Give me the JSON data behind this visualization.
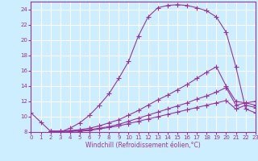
{
  "xlabel": "Windchill (Refroidissement éolien,°C)",
  "background_color": "#cceeff",
  "grid_color": "#ffffff",
  "line_color": "#993399",
  "xlim": [
    0,
    23
  ],
  "ylim": [
    8,
    25
  ],
  "xticks": [
    0,
    1,
    2,
    3,
    4,
    5,
    6,
    7,
    8,
    9,
    10,
    11,
    12,
    13,
    14,
    15,
    16,
    17,
    18,
    19,
    20,
    21,
    22,
    23
  ],
  "yticks": [
    8,
    10,
    12,
    14,
    16,
    18,
    20,
    22,
    24
  ],
  "curve1_x": [
    0,
    1,
    2,
    3,
    4,
    5,
    6,
    7,
    8,
    9,
    10,
    11,
    12,
    13,
    14,
    15,
    16,
    17,
    18,
    19,
    20,
    21,
    22,
    23
  ],
  "curve1_y": [
    10.5,
    9.3,
    8.1,
    8.0,
    8.5,
    9.2,
    10.2,
    11.5,
    13.0,
    15.0,
    17.2,
    20.5,
    23.0,
    24.2,
    24.5,
    24.6,
    24.5,
    24.2,
    23.8,
    23.0,
    21.0,
    16.5,
    11.0,
    10.5
  ],
  "curve2_x": [
    2,
    3,
    4,
    5,
    6,
    7,
    8,
    9,
    10,
    11,
    12,
    13,
    14,
    15,
    16,
    17,
    18,
    19,
    20,
    21,
    22,
    23
  ],
  "curve2_y": [
    8.1,
    8.1,
    8.2,
    8.3,
    8.5,
    8.8,
    9.2,
    9.6,
    10.2,
    10.8,
    11.5,
    12.2,
    12.8,
    13.5,
    14.2,
    15.0,
    15.8,
    16.5,
    14.0,
    12.0,
    11.8,
    12.0
  ],
  "curve3_x": [
    2,
    3,
    4,
    5,
    6,
    7,
    8,
    9,
    10,
    11,
    12,
    13,
    14,
    15,
    16,
    17,
    18,
    19,
    20,
    21,
    22,
    23
  ],
  "curve3_y": [
    8.1,
    8.1,
    8.1,
    8.2,
    8.3,
    8.5,
    8.7,
    9.0,
    9.4,
    9.8,
    10.2,
    10.6,
    11.0,
    11.4,
    11.8,
    12.3,
    12.7,
    13.2,
    13.8,
    11.5,
    11.8,
    11.5
  ],
  "curve4_x": [
    2,
    3,
    4,
    5,
    6,
    7,
    8,
    9,
    10,
    11,
    12,
    13,
    14,
    15,
    16,
    17,
    18,
    19,
    20,
    21,
    22,
    23
  ],
  "curve4_y": [
    8.1,
    8.1,
    8.1,
    8.1,
    8.2,
    8.4,
    8.6,
    8.8,
    9.1,
    9.4,
    9.7,
    10.0,
    10.3,
    10.6,
    10.9,
    11.2,
    11.5,
    11.8,
    12.1,
    11.0,
    11.5,
    11.2
  ]
}
